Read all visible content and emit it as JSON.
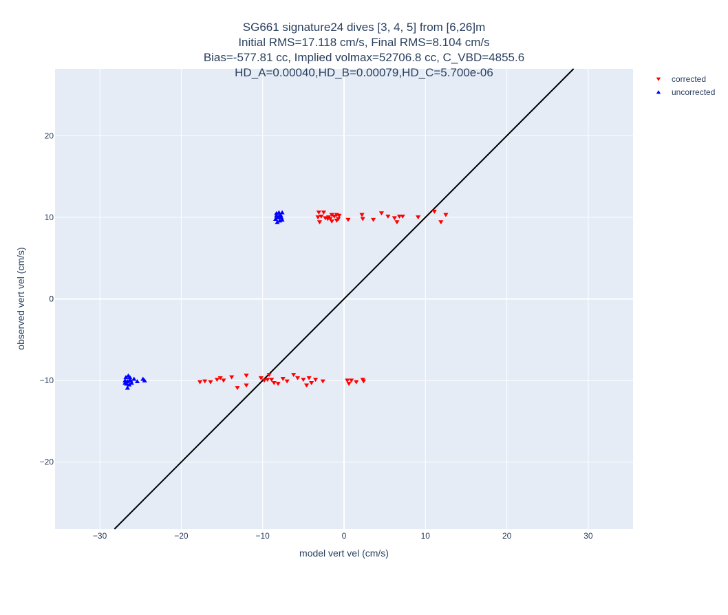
{
  "chart_data": {
    "type": "scatter",
    "title_lines": [
      "SG661 signature24 dives [3, 4, 5] from [6,26]m",
      "Initial RMS=17.118 cm/s, Final RMS=8.104 cm/s",
      "Bias=-577.81 cc, Implied volmax=52706.8 cc, C_VBD=4855.6",
      "HD_A=0.00040,HD_B=0.00079,HD_C=5.700e-06"
    ],
    "xlabel": "model vert vel (cm/s)",
    "ylabel": "observed vert vel (cm/s)",
    "xlim": [
      -35.5,
      35.5
    ],
    "ylim": [
      -28.2,
      28.2
    ],
    "xticks": [
      -30,
      -20,
      -10,
      0,
      10,
      20,
      30
    ],
    "yticks": [
      -20,
      -10,
      0,
      10,
      20
    ],
    "xtick_labels": [
      "−30",
      "−20",
      "−10",
      "0",
      "10",
      "20",
      "30"
    ],
    "ytick_labels": [
      "−20",
      "−10",
      "0",
      "10",
      "20"
    ],
    "grid": true,
    "legend_position": "top-right outside",
    "reference_line": {
      "type": "identity",
      "color": "#000000"
    },
    "series": [
      {
        "name": "corrected",
        "marker": "triangle-down",
        "color": "#ff0000",
        "points": [
          [
            -3.1,
            10.6
          ],
          [
            -2.5,
            10.6
          ],
          [
            -3.2,
            10.0
          ],
          [
            -2.8,
            10.1
          ],
          [
            -2.3,
            9.9
          ],
          [
            -1.9,
            10.0
          ],
          [
            -1.5,
            10.3
          ],
          [
            -1.2,
            10.1
          ],
          [
            -1.7,
            9.8
          ],
          [
            -0.9,
            10.3
          ],
          [
            -0.6,
            10.2
          ],
          [
            -0.7,
            9.8
          ],
          [
            -0.9,
            9.6
          ],
          [
            -1.5,
            9.5
          ],
          [
            -2.0,
            9.8
          ],
          [
            -3.0,
            9.4
          ],
          [
            0.5,
            9.7
          ],
          [
            2.2,
            10.3
          ],
          [
            2.3,
            9.8
          ],
          [
            3.6,
            9.7
          ],
          [
            4.6,
            10.5
          ],
          [
            5.4,
            10.1
          ],
          [
            6.2,
            9.9
          ],
          [
            6.5,
            9.4
          ],
          [
            6.8,
            10.1
          ],
          [
            7.2,
            10.1
          ],
          [
            9.1,
            10.0
          ],
          [
            11.1,
            10.7
          ],
          [
            11.9,
            9.4
          ],
          [
            12.5,
            10.3
          ],
          [
            -17.7,
            -10.2
          ],
          [
            -17.1,
            -10.1
          ],
          [
            -16.4,
            -10.2
          ],
          [
            -15.6,
            -9.9
          ],
          [
            -15.2,
            -9.7
          ],
          [
            -14.8,
            -10.0
          ],
          [
            -13.8,
            -9.6
          ],
          [
            -13.1,
            -10.9
          ],
          [
            -12.0,
            -10.6
          ],
          [
            -12.0,
            -9.4
          ],
          [
            -10.2,
            -9.7
          ],
          [
            -9.8,
            -10.0
          ],
          [
            -9.4,
            -9.9
          ],
          [
            -9.2,
            -9.3
          ],
          [
            -8.9,
            -9.9
          ],
          [
            -8.6,
            -10.3
          ],
          [
            -8.1,
            -10.4
          ],
          [
            -7.5,
            -9.8
          ],
          [
            -7.0,
            -10.1
          ],
          [
            -6.2,
            -9.3
          ],
          [
            -5.7,
            -9.7
          ],
          [
            -5.0,
            -9.9
          ],
          [
            -4.6,
            -10.6
          ],
          [
            -4.3,
            -9.7
          ],
          [
            -4.0,
            -10.3
          ],
          [
            -3.5,
            -9.9
          ],
          [
            -2.6,
            -10.1
          ],
          [
            0.4,
            -10.0
          ],
          [
            0.6,
            -10.4
          ],
          [
            0.9,
            -10.0
          ],
          [
            1.5,
            -10.2
          ],
          [
            2.3,
            -9.9
          ],
          [
            2.4,
            -10.1
          ]
        ]
      },
      {
        "name": "uncorrected",
        "marker": "triangle-up",
        "color": "#0000ff",
        "points": [
          [
            -8.3,
            10.5
          ],
          [
            -8.0,
            10.6
          ],
          [
            -7.8,
            10.3
          ],
          [
            -7.6,
            10.6
          ],
          [
            -8.1,
            10.0
          ],
          [
            -7.7,
            10.0
          ],
          [
            -8.4,
            9.8
          ],
          [
            -7.9,
            9.6
          ],
          [
            -7.6,
            9.7
          ],
          [
            -8.2,
            9.4
          ],
          [
            -7.9,
            10.2
          ],
          [
            -8.3,
            10.2
          ],
          [
            -26.8,
            -9.6
          ],
          [
            -26.5,
            -9.4
          ],
          [
            -26.3,
            -9.6
          ],
          [
            -26.9,
            -10.0
          ],
          [
            -26.6,
            -10.1
          ],
          [
            -26.2,
            -10.0
          ],
          [
            -26.7,
            -10.4
          ],
          [
            -26.4,
            -10.5
          ],
          [
            -26.6,
            -10.9
          ],
          [
            -26.1,
            -10.3
          ],
          [
            -25.8,
            -9.8
          ],
          [
            -25.4,
            -10.1
          ],
          [
            -24.7,
            -9.8
          ],
          [
            -24.5,
            -10.0
          ],
          [
            -26.9,
            -10.3
          ],
          [
            -26.3,
            -9.9
          ]
        ]
      }
    ]
  }
}
